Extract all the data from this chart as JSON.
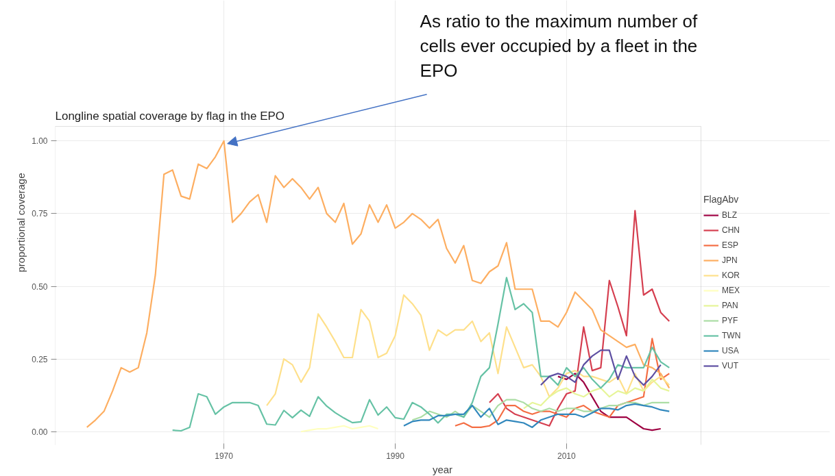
{
  "chart_data": {
    "type": "line",
    "title": "Longline spatial coverage by flag in the EPO",
    "xlabel": "year",
    "ylabel": "proportional coverage",
    "legend_title": "FlagAbv",
    "xlim": [
      1950.3,
      2025.7
    ],
    "ylim": [
      -0.05,
      1.05
    ],
    "xticks": [
      1970,
      1990,
      2010
    ],
    "yticks": [
      {
        "value": 0,
        "label": "0.00"
      },
      {
        "value": 0.25,
        "label": "0.25"
      },
      {
        "value": 0.5,
        "label": "0.50"
      },
      {
        "value": 0.75,
        "label": "0.75"
      },
      {
        "value": 1,
        "label": "1.00"
      }
    ],
    "grid": true,
    "legend": "right",
    "line_style": "solid",
    "marker": "none",
    "annotations": [
      {
        "text": "As ratio to the maximum number of cells ever occupied by a fleet in the EPO",
        "x": 1970,
        "y": 1.0
      }
    ],
    "series": [
      {
        "name": "BLZ",
        "color": "#9e0142",
        "x": [
          2009,
          2010,
          2011,
          2012,
          2013,
          2014,
          2015,
          2016,
          2017,
          2018,
          2019,
          2020,
          2021
        ],
        "values": [
          0.19,
          0.18,
          0.2,
          0.17,
          0.12,
          0.07,
          0.05,
          0.05,
          0.05,
          0.03,
          0.01,
          0.005,
          0.01
        ]
      },
      {
        "name": "CHN",
        "color": "#d53e4f",
        "x": [
          2001,
          2002,
          2003,
          2004,
          2005,
          2006,
          2007,
          2008,
          2009,
          2010,
          2011,
          2012,
          2013,
          2014,
          2015,
          2016,
          2017,
          2018,
          2019,
          2020,
          2021,
          2022
        ],
        "values": [
          0.1,
          0.13,
          0.08,
          0.06,
          0.05,
          0.04,
          0.03,
          0.02,
          0.08,
          0.13,
          0.14,
          0.36,
          0.21,
          0.22,
          0.52,
          0.43,
          0.33,
          0.76,
          0.47,
          0.49,
          0.41,
          0.38
        ]
      },
      {
        "name": "ESP",
        "color": "#f46d43",
        "x": [
          1997,
          1998,
          1999,
          2000,
          2001,
          2002,
          2003,
          2004,
          2005,
          2006,
          2007,
          2008,
          2009,
          2010,
          2011,
          2012,
          2013,
          2014,
          2015,
          2016,
          2017,
          2018,
          2019,
          2020,
          2021,
          2022
        ],
        "values": [
          0.02,
          0.03,
          0.015,
          0.015,
          0.02,
          0.04,
          0.09,
          0.09,
          0.07,
          0.06,
          0.07,
          0.07,
          0.06,
          0.05,
          0.08,
          0.09,
          0.07,
          0.06,
          0.05,
          0.09,
          0.1,
          0.11,
          0.12,
          0.32,
          0.18,
          0.2
        ]
      },
      {
        "name": "JPN",
        "color": "#fdae61",
        "x": [
          1954,
          1955,
          1956,
          1957,
          1958,
          1959,
          1960,
          1961,
          1962,
          1963,
          1964,
          1965,
          1966,
          1967,
          1968,
          1969,
          1970,
          1971,
          1972,
          1973,
          1974,
          1975,
          1976,
          1977,
          1978,
          1979,
          1980,
          1981,
          1982,
          1983,
          1984,
          1985,
          1986,
          1987,
          1988,
          1989,
          1990,
          1991,
          1992,
          1993,
          1994,
          1995,
          1996,
          1997,
          1998,
          1999,
          2000,
          2001,
          2002,
          2003,
          2004,
          2005,
          2006,
          2007,
          2008,
          2009,
          2010,
          2011,
          2012,
          2013,
          2014,
          2015,
          2016,
          2017,
          2018,
          2019,
          2020,
          2021,
          2022
        ],
        "values": [
          0.015,
          0.04,
          0.07,
          0.14,
          0.22,
          0.205,
          0.22,
          0.34,
          0.54,
          0.885,
          0.9,
          0.81,
          0.8,
          0.92,
          0.905,
          0.945,
          1.0,
          0.72,
          0.75,
          0.79,
          0.815,
          0.72,
          0.88,
          0.84,
          0.87,
          0.84,
          0.8,
          0.84,
          0.75,
          0.72,
          0.785,
          0.645,
          0.68,
          0.78,
          0.72,
          0.78,
          0.7,
          0.72,
          0.75,
          0.73,
          0.7,
          0.73,
          0.63,
          0.58,
          0.64,
          0.52,
          0.51,
          0.55,
          0.57,
          0.65,
          0.49,
          0.49,
          0.49,
          0.38,
          0.38,
          0.36,
          0.41,
          0.48,
          0.45,
          0.42,
          0.35,
          0.33,
          0.31,
          0.29,
          0.3,
          0.23,
          0.22,
          0.2,
          0.15
        ]
      },
      {
        "name": "KOR",
        "color": "#fee08b",
        "x": [
          1975,
          1976,
          1977,
          1978,
          1979,
          1980,
          1981,
          1982,
          1983,
          1984,
          1985,
          1986,
          1987,
          1988,
          1989,
          1990,
          1991,
          1992,
          1993,
          1994,
          1995,
          1996,
          1997,
          1998,
          1999,
          2000,
          2001,
          2002,
          2003,
          2004,
          2005,
          2006,
          2007,
          2008,
          2009,
          2010,
          2011,
          2012,
          2013,
          2014,
          2015,
          2016,
          2017,
          2018,
          2019,
          2020,
          2021,
          2022
        ],
        "values": [
          0.09,
          0.13,
          0.25,
          0.23,
          0.17,
          0.22,
          0.405,
          0.36,
          0.31,
          0.255,
          0.255,
          0.42,
          0.38,
          0.255,
          0.27,
          0.33,
          0.47,
          0.44,
          0.4,
          0.28,
          0.35,
          0.33,
          0.35,
          0.35,
          0.38,
          0.31,
          0.34,
          0.2,
          0.36,
          0.29,
          0.22,
          0.23,
          0.19,
          0.12,
          0.15,
          0.2,
          0.21,
          0.19,
          0.19,
          0.18,
          0.17,
          0.19,
          0.13,
          0.2,
          0.14,
          0.17,
          0.19,
          0.16
        ]
      },
      {
        "name": "MEX",
        "color": "#ffffbf",
        "x": [
          1979,
          1980,
          1981,
          1982,
          1983,
          1984,
          1985,
          1986,
          1987,
          1988
        ],
        "values": [
          0.0,
          0.005,
          0.01,
          0.01,
          0.015,
          0.02,
          0.01,
          0.015,
          0.02,
          0.01
        ]
      },
      {
        "name": "PAN",
        "color": "#e6f598",
        "x": [
          2005,
          2006,
          2007,
          2008,
          2009,
          2010,
          2011,
          2012,
          2013,
          2014,
          2015,
          2016,
          2017,
          2018,
          2019,
          2020,
          2021,
          2022
        ],
        "values": [
          0.08,
          0.1,
          0.09,
          0.12,
          0.14,
          0.15,
          0.13,
          0.12,
          0.14,
          0.15,
          0.12,
          0.14,
          0.13,
          0.15,
          0.14,
          0.18,
          0.15,
          0.14
        ]
      },
      {
        "name": "PYF",
        "color": "#abdda4",
        "x": [
          1992,
          1993,
          1994,
          1995,
          1996,
          1997,
          1998,
          1999,
          2000,
          2001,
          2002,
          2003,
          2004,
          2005,
          2006,
          2007,
          2008,
          2009,
          2010,
          2011,
          2012,
          2013,
          2014,
          2015,
          2016,
          2017,
          2018,
          2019,
          2020,
          2021,
          2022
        ],
        "values": [
          0.04,
          0.05,
          0.07,
          0.06,
          0.05,
          0.07,
          0.05,
          0.09,
          0.07,
          0.05,
          0.09,
          0.11,
          0.11,
          0.1,
          0.08,
          0.07,
          0.08,
          0.07,
          0.08,
          0.08,
          0.07,
          0.07,
          0.08,
          0.09,
          0.09,
          0.1,
          0.1,
          0.09,
          0.1,
          0.1,
          0.1
        ]
      },
      {
        "name": "TWN",
        "color": "#66c2a5",
        "x": [
          1964,
          1965,
          1966,
          1967,
          1968,
          1969,
          1970,
          1971,
          1972,
          1973,
          1974,
          1975,
          1976,
          1977,
          1978,
          1979,
          1980,
          1981,
          1982,
          1983,
          1984,
          1985,
          1986,
          1987,
          1988,
          1989,
          1990,
          1991,
          1992,
          1993,
          1994,
          1995,
          1996,
          1997,
          1998,
          1999,
          2000,
          2001,
          2002,
          2003,
          2004,
          2005,
          2006,
          2007,
          2008,
          2009,
          2010,
          2011,
          2012,
          2013,
          2014,
          2015,
          2016,
          2017,
          2018,
          2019,
          2020,
          2021,
          2022
        ],
        "values": [
          0.005,
          0.003,
          0.015,
          0.13,
          0.12,
          0.06,
          0.085,
          0.1,
          0.1,
          0.1,
          0.09,
          0.026,
          0.023,
          0.073,
          0.048,
          0.074,
          0.053,
          0.12,
          0.088,
          0.065,
          0.047,
          0.031,
          0.034,
          0.11,
          0.057,
          0.085,
          0.048,
          0.043,
          0.1,
          0.085,
          0.06,
          0.03,
          0.06,
          0.06,
          0.05,
          0.1,
          0.19,
          0.22,
          0.37,
          0.53,
          0.42,
          0.44,
          0.41,
          0.19,
          0.19,
          0.16,
          0.22,
          0.19,
          0.22,
          0.18,
          0.15,
          0.18,
          0.23,
          0.22,
          0.22,
          0.22,
          0.29,
          0.24,
          0.22
        ]
      },
      {
        "name": "USA",
        "color": "#3288bd",
        "x": [
          1991,
          1992,
          1993,
          1994,
          1995,
          1996,
          1997,
          1998,
          1999,
          2000,
          2001,
          2002,
          2003,
          2004,
          2005,
          2006,
          2007,
          2008,
          2009,
          2010,
          2011,
          2012,
          2013,
          2014,
          2015,
          2016,
          2017,
          2018,
          2019,
          2020,
          2021,
          2022
        ],
        "values": [
          0.02,
          0.035,
          0.04,
          0.04,
          0.055,
          0.055,
          0.06,
          0.06,
          0.09,
          0.05,
          0.08,
          0.025,
          0.04,
          0.035,
          0.03,
          0.015,
          0.04,
          0.05,
          0.06,
          0.06,
          0.06,
          0.05,
          0.065,
          0.08,
          0.08,
          0.075,
          0.09,
          0.095,
          0.09,
          0.085,
          0.075,
          0.07
        ]
      },
      {
        "name": "VUT",
        "color": "#5e4fa2",
        "x": [
          2007,
          2008,
          2009,
          2010,
          2011,
          2012,
          2013,
          2014,
          2015,
          2016,
          2017,
          2018,
          2019,
          2020,
          2021
        ],
        "values": [
          0.16,
          0.19,
          0.2,
          0.19,
          0.17,
          0.23,
          0.26,
          0.28,
          0.28,
          0.18,
          0.26,
          0.19,
          0.16,
          0.19,
          0.23
        ]
      }
    ]
  }
}
